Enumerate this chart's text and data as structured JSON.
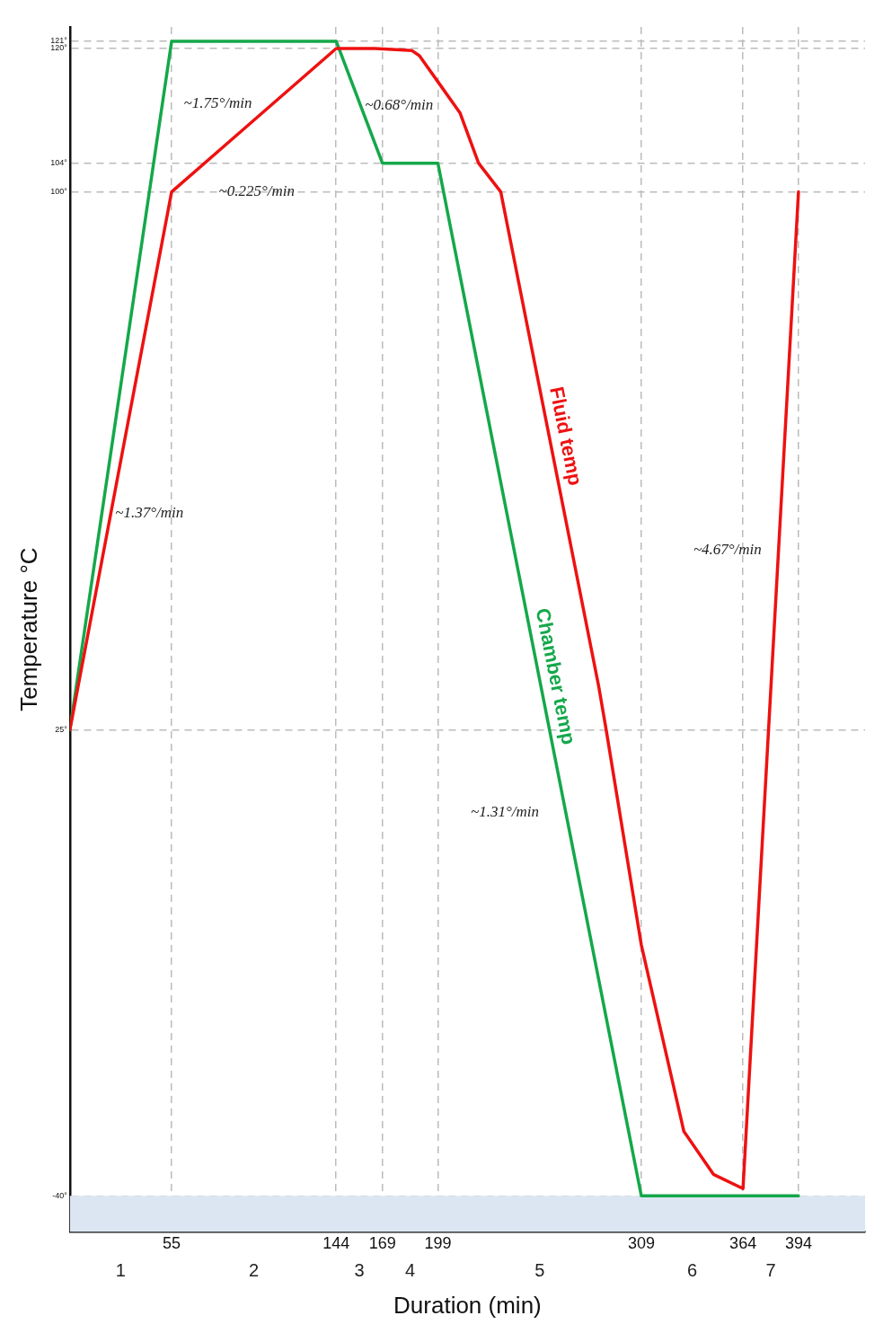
{
  "chart_data": {
    "type": "line",
    "xlabel": "Duration (min)",
    "ylabel": "Temperature °C",
    "xlim": [
      0,
      430
    ],
    "xticks": [
      55,
      144,
      169,
      199,
      309,
      364,
      394
    ],
    "ylim": [
      -45,
      123
    ],
    "yticks": [
      {
        "value": -40,
        "label": "-40°"
      },
      {
        "value": 25,
        "label": "25°"
      },
      {
        "value": 100,
        "label": "100°"
      },
      {
        "value": 104,
        "label": "104°"
      },
      {
        "value": 120,
        "label": "120°"
      },
      {
        "value": 121,
        "label": "121°"
      }
    ],
    "grid": true,
    "legend": false,
    "marker": "none",
    "line_style": "solid",
    "series": [
      {
        "name": "Fluid temp",
        "color": "#ee1111",
        "x": [
          0,
          55,
          144,
          165,
          185,
          189,
          200,
          211,
          221,
          233,
          286,
          290,
          309,
          332,
          348,
          364,
          394
        ],
        "values": [
          25,
          100,
          120,
          120,
          119.7,
          119,
          115,
          111,
          104,
          100,
          31,
          25,
          -5,
          -31,
          -37,
          -39,
          100
        ]
      },
      {
        "name": "Chamber temp",
        "color": "#14a84a",
        "x": [
          0,
          55,
          144,
          169,
          199,
          309,
          394
        ],
        "values": [
          25,
          121,
          121,
          104,
          104,
          -40,
          -40
        ]
      }
    ],
    "bands": [
      {
        "axis": "y",
        "from": -45,
        "to": -40,
        "color": "#dce6f2"
      }
    ],
    "annotations": [
      "~1.75°/min",
      "~1.37°/min",
      "~0.225°/min",
      "~0.68°/min",
      "~1.31°/min",
      "~4.67°/min",
      "1",
      "2",
      "3",
      "4",
      "5",
      "6",
      "7"
    ]
  }
}
